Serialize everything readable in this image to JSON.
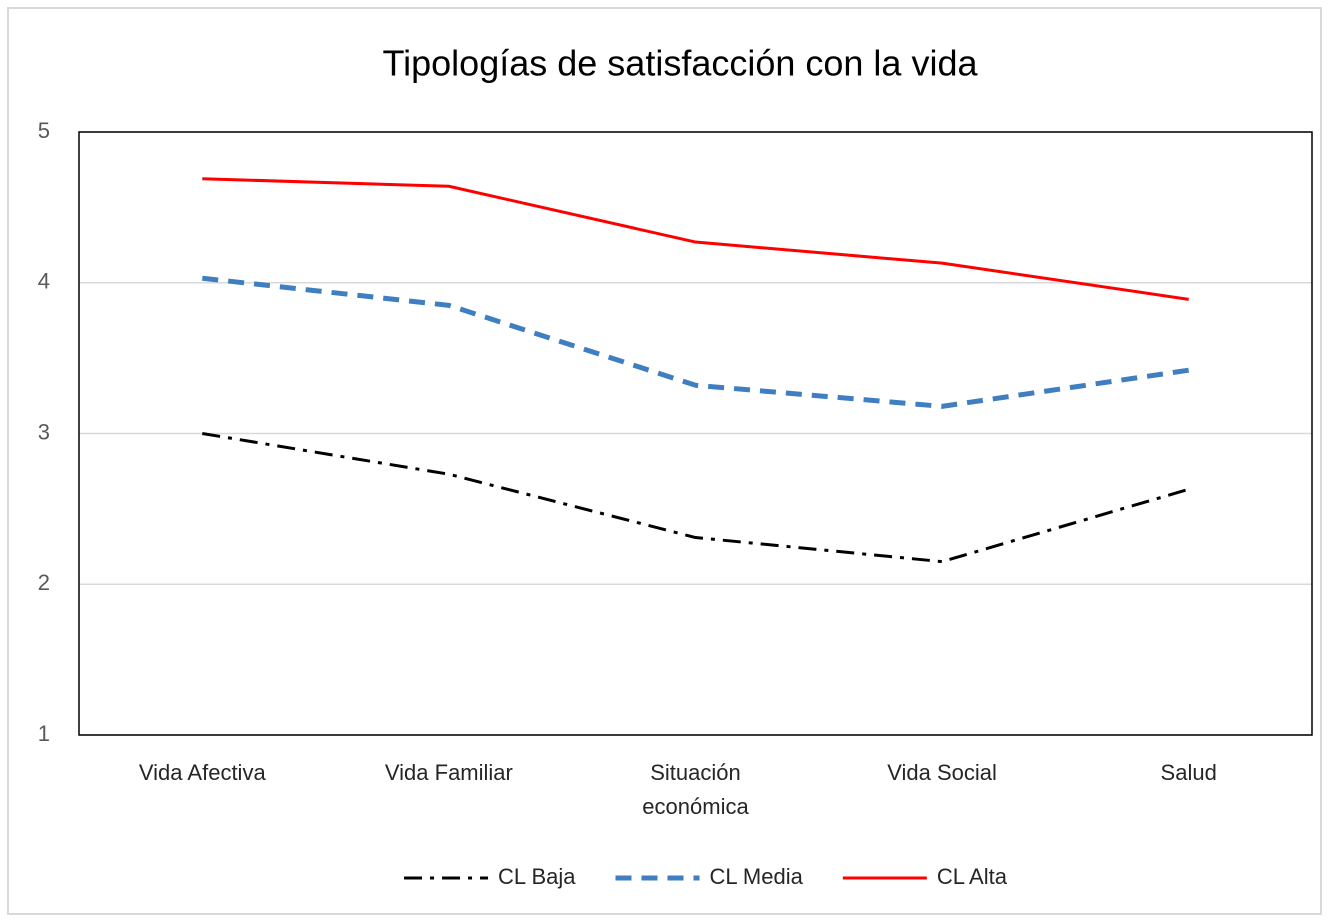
{
  "chart_data": {
    "type": "line",
    "title": "Tipologías de satisfacción con la vida",
    "categories": [
      "Vida Afectiva",
      "Vida Familiar",
      "Situación económica",
      "Vida Social",
      "Salud"
    ],
    "series": [
      {
        "name": "CL Baja",
        "color": "#000000",
        "dash": "dashdot",
        "values": [
          3.0,
          2.73,
          2.31,
          2.15,
          2.63
        ]
      },
      {
        "name": "CL Media",
        "color": "#3f7fc1",
        "dash": "dash",
        "values": [
          4.03,
          3.85,
          3.32,
          3.18,
          3.42
        ]
      },
      {
        "name": "CL Alta",
        "color": "#ff0000",
        "dash": "solid",
        "values": [
          4.69,
          4.64,
          4.27,
          4.13,
          3.89
        ]
      }
    ],
    "ylim": [
      1,
      5
    ],
    "yticks": [
      1,
      2,
      3,
      4,
      5
    ],
    "grid": true,
    "legend": "bottom"
  }
}
